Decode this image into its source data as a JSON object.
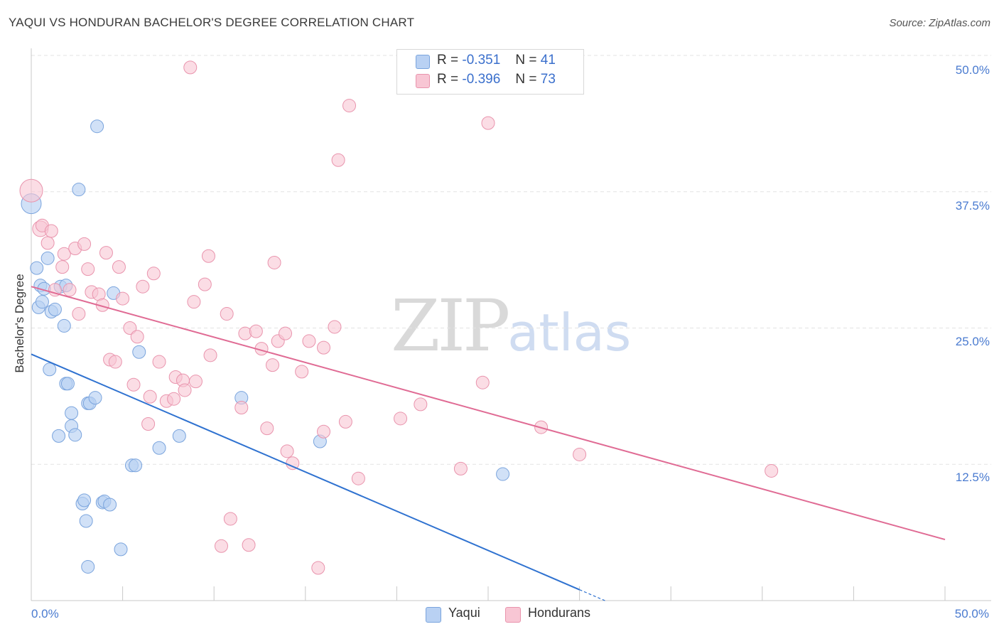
{
  "title": "YAQUI VS HONDURAN BACHELOR'S DEGREE CORRELATION CHART",
  "source": "Source: ZipAtlas.com",
  "watermark": {
    "zip": "ZIP",
    "atlas": "atlas"
  },
  "legend_top": {
    "rows": [
      {
        "r_label": "R =",
        "r_value": "-0.351",
        "n_label": "N =",
        "n_value": "41"
      },
      {
        "r_label": "R =",
        "r_value": "-0.396",
        "n_label": "N =",
        "n_value": "73"
      }
    ]
  },
  "legend_bottom": {
    "series1": "Yaqui",
    "series2": "Hondurans"
  },
  "colors": {
    "yaqui_fill": "#b9d1f3",
    "yaqui_stroke": "#7aa4dd",
    "yaqui_line": "#2f72d0",
    "honduran_fill": "#f8c6d4",
    "honduran_stroke": "#e994ad",
    "honduran_line": "#e06b94",
    "grid": "#e3e3e3",
    "axis_text": "#4a7bd0"
  },
  "chart_data": {
    "type": "scatter",
    "title": "YAQUI VS HONDURAN BACHELOR'S DEGREE CORRELATION CHART",
    "xlabel": "",
    "ylabel": "Bachelor's Degree",
    "xlim": [
      0,
      50
    ],
    "ylim": [
      0,
      50
    ],
    "x_tick_labels": [
      "0.0%",
      "50.0%"
    ],
    "y_ticks": [
      12.5,
      25.0,
      37.5,
      50.0
    ],
    "y_tick_labels": [
      "12.5%",
      "25.0%",
      "37.5%",
      "50.0%"
    ],
    "series": [
      {
        "name": "Yaqui",
        "R": -0.351,
        "N": 41,
        "trend": {
          "x0": 0,
          "y0": 22.6,
          "x1": 30,
          "y1": 1.0,
          "dashed_to_x": 31.5
        },
        "points": [
          [
            0.0,
            36.4,
            14
          ],
          [
            0.3,
            30.5,
            9
          ],
          [
            0.4,
            26.9,
            9
          ],
          [
            0.5,
            28.9,
            9
          ],
          [
            0.6,
            27.4,
            9
          ],
          [
            0.7,
            28.6,
            9
          ],
          [
            0.9,
            31.4,
            9
          ],
          [
            1.0,
            21.2,
            9
          ],
          [
            1.1,
            26.5,
            9
          ],
          [
            1.3,
            26.7,
            9
          ],
          [
            1.5,
            15.1,
            9
          ],
          [
            1.6,
            28.8,
            9
          ],
          [
            1.8,
            25.2,
            9
          ],
          [
            1.9,
            28.9,
            9
          ],
          [
            1.9,
            19.9,
            9
          ],
          [
            2.0,
            19.9,
            9
          ],
          [
            2.2,
            17.2,
            9
          ],
          [
            2.2,
            16.0,
            9
          ],
          [
            2.4,
            15.2,
            9
          ],
          [
            2.6,
            37.7,
            9
          ],
          [
            2.8,
            8.9,
            9
          ],
          [
            2.9,
            9.2,
            9
          ],
          [
            3.0,
            7.3,
            9
          ],
          [
            3.1,
            18.1,
            9
          ],
          [
            3.1,
            3.1,
            9
          ],
          [
            3.2,
            18.1,
            9
          ],
          [
            3.5,
            18.6,
            9
          ],
          [
            3.6,
            43.5,
            9
          ],
          [
            3.9,
            9.0,
            9
          ],
          [
            4.0,
            9.1,
            9
          ],
          [
            4.3,
            8.8,
            9
          ],
          [
            4.5,
            28.2,
            9
          ],
          [
            4.9,
            4.7,
            9
          ],
          [
            5.5,
            12.4,
            9
          ],
          [
            5.7,
            12.4,
            9
          ],
          [
            5.9,
            22.8,
            9
          ],
          [
            7.0,
            14.0,
            9
          ],
          [
            8.1,
            15.1,
            9
          ],
          [
            11.5,
            18.6,
            9
          ],
          [
            15.8,
            14.6,
            9
          ],
          [
            25.8,
            11.6,
            9
          ]
        ]
      },
      {
        "name": "Hondurans",
        "R": -0.396,
        "N": 73,
        "trend": {
          "x0": 0,
          "y0": 28.8,
          "x1": 50,
          "y1": 5.6
        },
        "points": [
          [
            0.0,
            37.6,
            16
          ],
          [
            0.5,
            34.1,
            11
          ],
          [
            0.6,
            34.4,
            9
          ],
          [
            0.9,
            32.8,
            9
          ],
          [
            1.1,
            33.9,
            9
          ],
          [
            1.3,
            28.5,
            9
          ],
          [
            1.7,
            30.6,
            9
          ],
          [
            1.8,
            31.8,
            9
          ],
          [
            2.1,
            28.5,
            9
          ],
          [
            2.4,
            32.3,
            9
          ],
          [
            2.6,
            26.3,
            9
          ],
          [
            2.9,
            32.7,
            9
          ],
          [
            3.1,
            30.4,
            9
          ],
          [
            3.3,
            28.3,
            9
          ],
          [
            3.7,
            28.1,
            9
          ],
          [
            3.9,
            27.1,
            9
          ],
          [
            4.1,
            31.9,
            9
          ],
          [
            4.3,
            22.1,
            9
          ],
          [
            4.6,
            21.9,
            9
          ],
          [
            4.8,
            30.6,
            9
          ],
          [
            5.0,
            27.7,
            9
          ],
          [
            5.4,
            25.0,
            9
          ],
          [
            5.6,
            19.8,
            9
          ],
          [
            5.8,
            24.2,
            9
          ],
          [
            6.1,
            28.8,
            9
          ],
          [
            6.4,
            16.2,
            9
          ],
          [
            6.5,
            18.7,
            9
          ],
          [
            6.7,
            30.0,
            9
          ],
          [
            7.0,
            21.9,
            9
          ],
          [
            7.4,
            18.3,
            9
          ],
          [
            7.8,
            18.5,
            9
          ],
          [
            7.9,
            20.5,
            9
          ],
          [
            8.3,
            20.2,
            9
          ],
          [
            8.4,
            19.3,
            9
          ],
          [
            8.7,
            48.9,
            9
          ],
          [
            8.9,
            27.4,
            9
          ],
          [
            9.0,
            20.1,
            9
          ],
          [
            9.5,
            29.0,
            9
          ],
          [
            9.7,
            31.6,
            9
          ],
          [
            9.8,
            22.5,
            9
          ],
          [
            10.4,
            5.0,
            9
          ],
          [
            10.7,
            26.3,
            9
          ],
          [
            10.9,
            7.5,
            9
          ],
          [
            11.5,
            17.7,
            9
          ],
          [
            11.7,
            24.5,
            9
          ],
          [
            11.9,
            5.1,
            9
          ],
          [
            12.3,
            24.7,
            9
          ],
          [
            12.6,
            23.1,
            9
          ],
          [
            12.9,
            15.8,
            9
          ],
          [
            13.2,
            21.6,
            9
          ],
          [
            13.3,
            31.0,
            9
          ],
          [
            13.5,
            23.8,
            9
          ],
          [
            13.9,
            24.5,
            9
          ],
          [
            14.0,
            13.7,
            9
          ],
          [
            14.3,
            12.6,
            9
          ],
          [
            14.8,
            21.0,
            9
          ],
          [
            15.2,
            23.8,
            9
          ],
          [
            15.7,
            3.0,
            9
          ],
          [
            16.0,
            15.5,
            9
          ],
          [
            16.0,
            23.2,
            9
          ],
          [
            16.6,
            25.1,
            9
          ],
          [
            16.8,
            40.4,
            9
          ],
          [
            17.2,
            16.4,
            9
          ],
          [
            17.4,
            45.4,
            9
          ],
          [
            17.9,
            11.2,
            9
          ],
          [
            20.2,
            16.7,
            9
          ],
          [
            21.3,
            18.0,
            9
          ],
          [
            23.5,
            12.1,
            9
          ],
          [
            24.7,
            20.0,
            9
          ],
          [
            25.0,
            43.8,
            9
          ],
          [
            27.9,
            15.9,
            9
          ],
          [
            30.0,
            13.4,
            9
          ],
          [
            40.5,
            11.9,
            9
          ]
        ]
      }
    ]
  }
}
